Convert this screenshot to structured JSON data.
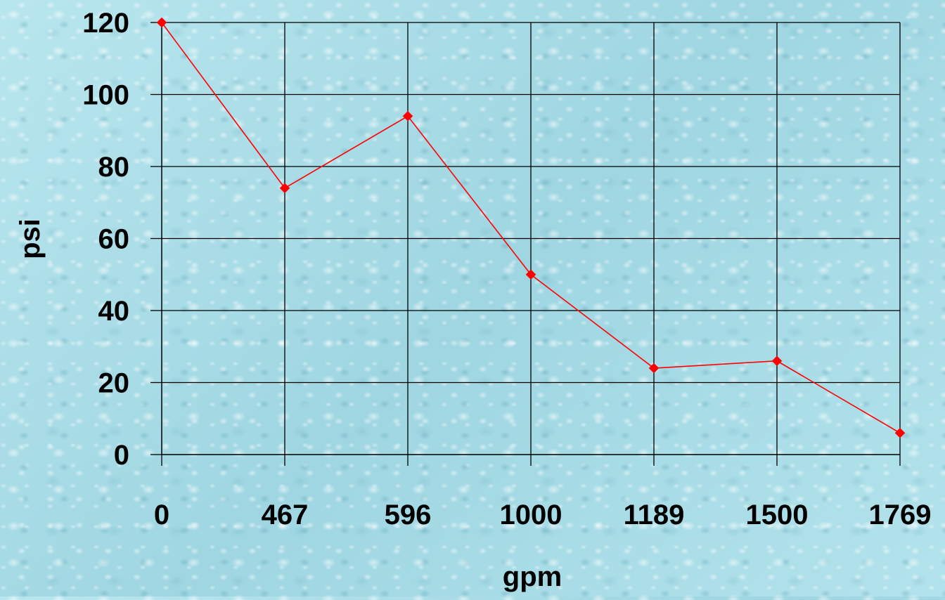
{
  "chart_data": {
    "type": "line",
    "title": "",
    "xlabel": "gpm",
    "ylabel": "psi",
    "categories": [
      "0",
      "467",
      "596",
      "1000",
      "1189",
      "1500",
      "1769"
    ],
    "series": [
      {
        "values": [
          120,
          74,
          94,
          50,
          24,
          26,
          6
        ]
      }
    ],
    "ylim": [
      0,
      120
    ],
    "yticks": [
      0,
      20,
      40,
      60,
      80,
      100,
      120
    ],
    "grid": true,
    "legend": "none",
    "colors": {
      "line": "#ff0000",
      "marker": "#ff0000",
      "grid": "#000000",
      "text": "#000000"
    }
  }
}
